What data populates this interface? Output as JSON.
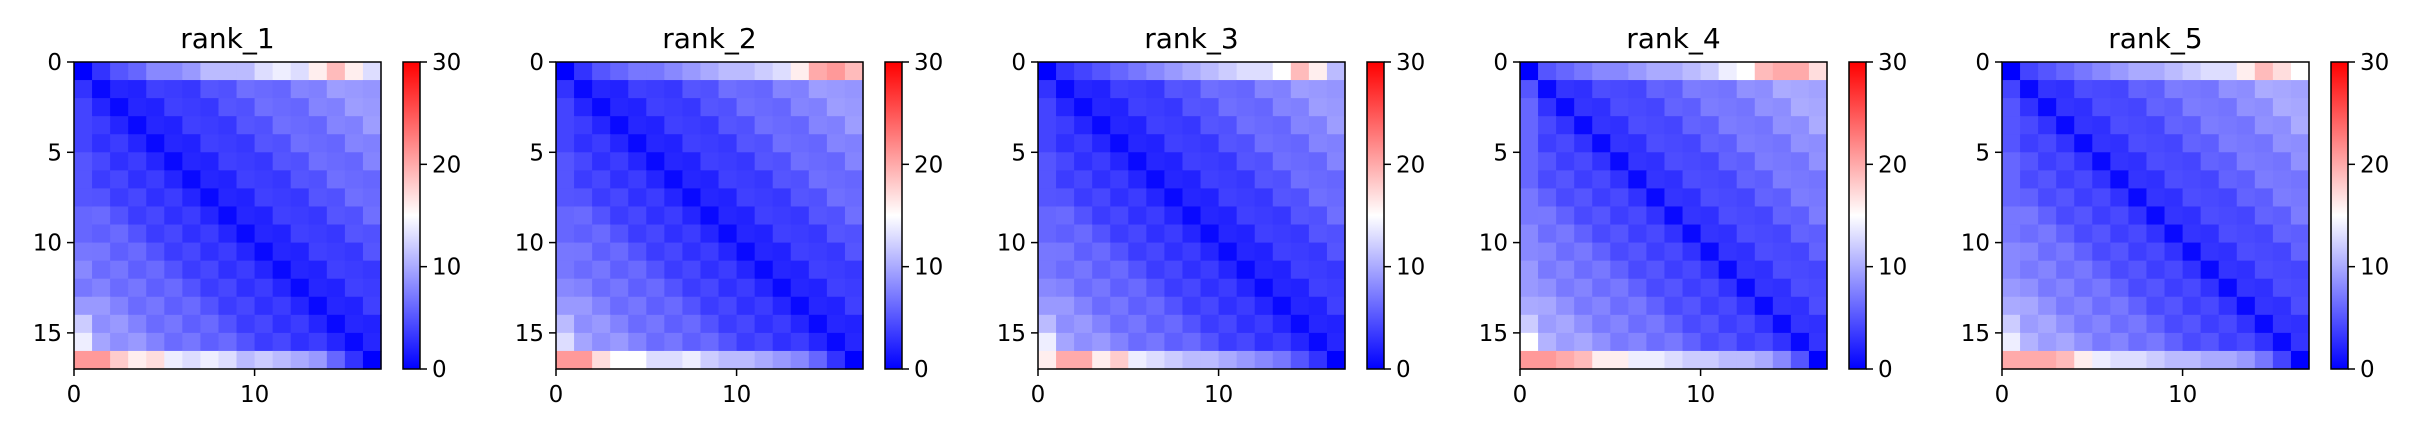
{
  "chart_data": [
    {
      "type": "heatmap",
      "title": "rank_1",
      "size": 17,
      "xticks": [
        0,
        10
      ],
      "yticks": [
        0,
        5,
        10,
        15
      ],
      "colorbar": {
        "vmin": 0,
        "vmax": 30,
        "ticks": [
          0,
          10,
          20,
          30
        ],
        "colormap": "bwr"
      },
      "diag_gap": 0,
      "top_edge": [
        0,
        3,
        5,
        6,
        8,
        8,
        9,
        11,
        11,
        11,
        13,
        14,
        13,
        16,
        19,
        16,
        13
      ],
      "left_edge": [
        0,
        3,
        4,
        4,
        4,
        5,
        5,
        5,
        6,
        6,
        7,
        8,
        7,
        9,
        12,
        14,
        21
      ],
      "bottom_edge": [
        21,
        21,
        18,
        16,
        17,
        14,
        13,
        14,
        13,
        11,
        12,
        11,
        10,
        9,
        6,
        3,
        0
      ]
    },
    {
      "type": "heatmap",
      "title": "rank_2",
      "size": 17,
      "xticks": [
        0,
        10
      ],
      "yticks": [
        0,
        5,
        10,
        15
      ],
      "colorbar": {
        "vmin": 0,
        "vmax": 30,
        "ticks": [
          0,
          10,
          20,
          30
        ],
        "colormap": "bwr"
      },
      "diag_gap": 0,
      "top_edge": [
        0,
        3,
        5,
        6,
        7,
        7,
        8,
        9,
        10,
        11,
        11,
        12,
        13,
        16,
        20,
        21,
        19
      ],
      "left_edge": [
        0,
        3,
        4,
        4,
        4,
        5,
        5,
        5,
        6,
        6,
        7,
        7,
        8,
        9,
        11,
        13,
        21
      ],
      "bottom_edge": [
        21,
        21,
        17,
        15,
        15,
        13,
        13,
        14,
        12,
        11,
        11,
        10,
        9,
        8,
        6,
        3,
        0
      ]
    },
    {
      "type": "heatmap",
      "title": "rank_3",
      "size": 17,
      "xticks": [
        0,
        10
      ],
      "yticks": [
        0,
        5,
        10,
        15
      ],
      "colorbar": {
        "vmin": 0,
        "vmax": 30,
        "ticks": [
          0,
          10,
          20,
          30
        ],
        "colormap": "bwr"
      },
      "diag_gap": 0,
      "top_edge": [
        0,
        3,
        4,
        5,
        6,
        7,
        8,
        9,
        10,
        11,
        12,
        13,
        13,
        15,
        19,
        16,
        11
      ],
      "left_edge": [
        0,
        3,
        4,
        4,
        4,
        5,
        5,
        5,
        6,
        6,
        7,
        7,
        8,
        9,
        11,
        14,
        16
      ],
      "bottom_edge": [
        16,
        20,
        20,
        16,
        18,
        14,
        13,
        12,
        11,
        11,
        10,
        9,
        8,
        7,
        5,
        3,
        0
      ]
    },
    {
      "type": "heatmap",
      "title": "rank_4",
      "size": 17,
      "xticks": [
        0,
        10
      ],
      "yticks": [
        0,
        5,
        10,
        15
      ],
      "colorbar": {
        "vmin": 0,
        "vmax": 30,
        "ticks": [
          0,
          10,
          20,
          30
        ],
        "colormap": "bwr"
      },
      "diag_gap": 1,
      "top_edge": [
        0,
        5,
        6,
        7,
        8,
        8,
        9,
        10,
        10,
        11,
        12,
        14,
        15,
        19,
        20,
        20,
        17
      ],
      "left_edge": [
        0,
        5,
        6,
        6,
        6,
        6,
        6,
        7,
        7,
        8,
        8,
        9,
        9,
        10,
        12,
        15,
        21
      ],
      "bottom_edge": [
        21,
        21,
        20,
        19,
        16,
        16,
        14,
        14,
        13,
        12,
        12,
        11,
        11,
        10,
        8,
        5,
        0
      ]
    },
    {
      "type": "heatmap",
      "title": "rank_5",
      "size": 17,
      "xticks": [
        0,
        10
      ],
      "yticks": [
        0,
        5,
        10,
        15
      ],
      "colorbar": {
        "vmin": 0,
        "vmax": 30,
        "ticks": [
          0,
          10,
          20,
          30
        ],
        "colormap": "bwr"
      },
      "diag_gap": 1,
      "top_edge": [
        0,
        4,
        5,
        6,
        7,
        8,
        9,
        10,
        10,
        11,
        12,
        13,
        13,
        16,
        19,
        17,
        15
      ],
      "left_edge": [
        0,
        4,
        5,
        5,
        5,
        6,
        6,
        6,
        7,
        7,
        8,
        8,
        9,
        10,
        12,
        14,
        20
      ],
      "bottom_edge": [
        20,
        20,
        20,
        19,
        16,
        14,
        13,
        13,
        12,
        11,
        11,
        10,
        10,
        9,
        7,
        4,
        0
      ]
    }
  ]
}
